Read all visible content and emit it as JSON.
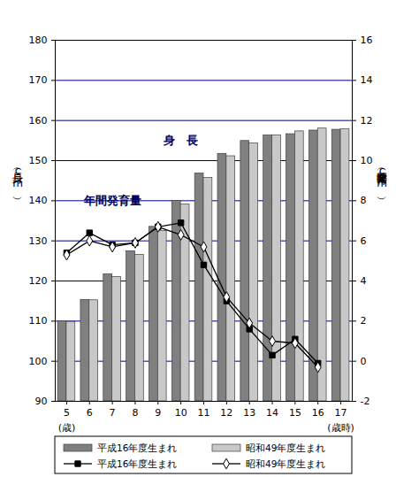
{
  "chart_data": {
    "type": "bar",
    "categories": [
      "5",
      "6",
      "7",
      "8",
      "9",
      "10",
      "11",
      "12",
      "13",
      "14",
      "15",
      "16",
      "17"
    ],
    "x_notes": [
      {
        "category": "5",
        "text": "(歳)"
      },
      {
        "category": "17",
        "text": "(歳時)"
      }
    ],
    "ylabel": "身長（cm）",
    "y2label": "年間発育量（cm）",
    "ylim": [
      90,
      180
    ],
    "yticks": [
      90,
      100,
      110,
      120,
      130,
      140,
      150,
      160,
      170,
      180
    ],
    "y2lim": [
      -2,
      16
    ],
    "y2ticks": [
      -2,
      0,
      2,
      4,
      6,
      8,
      10,
      12,
      14,
      16
    ],
    "grid": true,
    "legend": "bottom",
    "annotations": [
      {
        "text": "身　長",
        "x": "10",
        "y": 155
      },
      {
        "text": "年間発育量",
        "x": "7",
        "y": 140
      }
    ],
    "series": [
      {
        "name": "平成16年度生まれ",
        "type": "bar",
        "color": "#808080",
        "values": [
          110.0,
          115.3,
          121.7,
          127.4,
          133.5,
          140.0,
          146.8,
          151.7,
          154.9,
          156.3,
          156.6,
          157.5,
          157.7
        ]
      },
      {
        "name": "昭和49年度生まれ",
        "type": "bar",
        "color": "#c8c8c8",
        "values": [
          109.8,
          115.2,
          121.0,
          126.5,
          132.5,
          139.1,
          145.7,
          151.1,
          154.3,
          156.3,
          157.3,
          158.0,
          157.8
        ]
      },
      {
        "name": "平成16年度生まれ",
        "type": "line",
        "axis": "y2",
        "color": "#000000",
        "marker": "square",
        "values": [
          5.4,
          6.4,
          5.8,
          5.9,
          6.7,
          6.9,
          4.8,
          3.0,
          1.6,
          0.3,
          1.1,
          -0.1,
          null
        ]
      },
      {
        "name": "昭和49年度生まれ",
        "type": "line",
        "axis": "y2",
        "color": "#000000",
        "marker": "diamond",
        "values": [
          5.3,
          6.0,
          5.7,
          5.9,
          6.7,
          6.3,
          5.7,
          3.2,
          1.9,
          1.0,
          0.9,
          -0.3,
          null
        ]
      }
    ]
  }
}
